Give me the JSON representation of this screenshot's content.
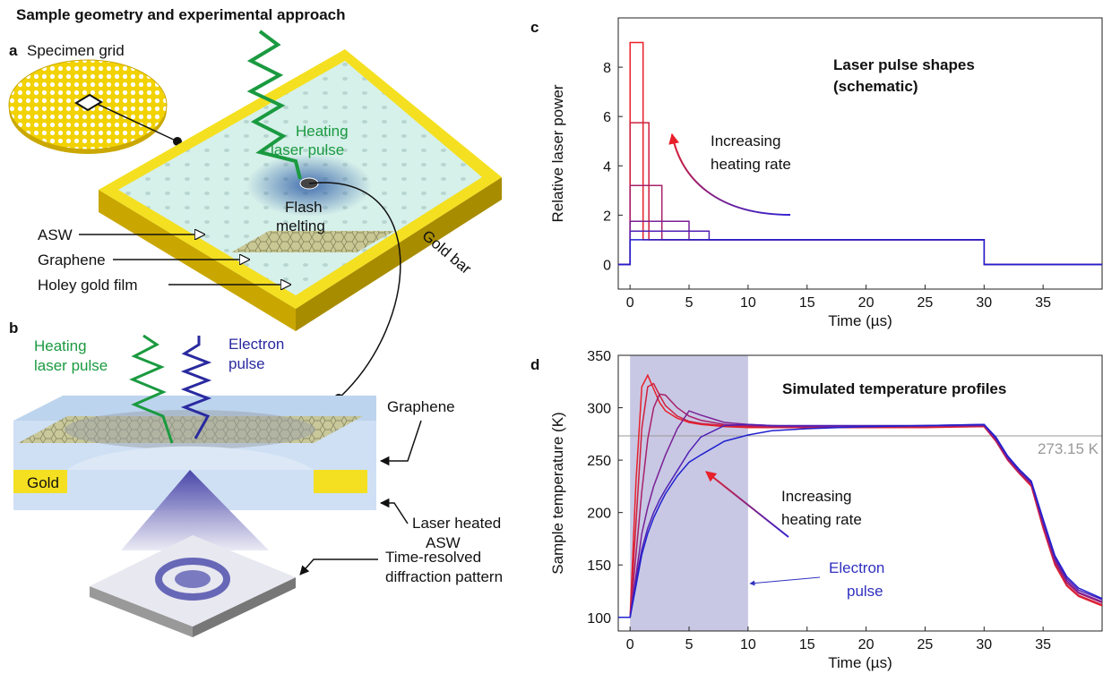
{
  "header": {
    "title": "Sample geometry and experimental approach"
  },
  "panel_a": {
    "label": "a",
    "specimen_grid": "Specimen grid",
    "heating_laser": [
      "Heating",
      "laser pulse"
    ],
    "flash_melting": [
      "Flash",
      "melting"
    ],
    "asw": "ASW",
    "graphene": "Graphene",
    "holey_gold": "Holey gold film",
    "gold_bar": "Gold bar"
  },
  "panel_b": {
    "label": "b",
    "heating_laser": [
      "Heating",
      "laser pulse"
    ],
    "electron_pulse": [
      "Electron",
      "pulse"
    ],
    "graphene": "Graphene",
    "gold": "Gold",
    "laser_heated_asw": [
      "Laser heated",
      "ASW"
    ],
    "diffraction": [
      "Time-resolved",
      "diffraction pattern"
    ]
  },
  "chart_data": [
    {
      "type": "line",
      "panel_label": "c",
      "title": "Laser pulse shapes",
      "subtitle": "(schematic)",
      "x_label": "Time (µs)",
      "y_label": "Relative laser power",
      "annotation": [
        "Increasing",
        "heating rate"
      ],
      "xlim": [
        -1,
        40
      ],
      "xticks": [
        0,
        5,
        10,
        15,
        20,
        25,
        30,
        35
      ],
      "ylim": [
        -1,
        10
      ],
      "yticks": [
        0,
        2,
        4,
        6,
        8
      ],
      "series": [
        {
          "color": "#e8202a",
          "x": [
            -1,
            0,
            0,
            1.1,
            1.1,
            30,
            30,
            40
          ],
          "values": [
            0,
            0,
            9,
            9,
            1,
            1,
            0,
            0
          ]
        },
        {
          "color": "#d0203e",
          "x": [
            -1,
            0,
            0,
            1.6,
            1.6,
            30,
            30,
            40
          ],
          "values": [
            0,
            0,
            5.75,
            5.75,
            1,
            1,
            0,
            0
          ]
        },
        {
          "color": "#a8206a",
          "x": [
            -1,
            0,
            0,
            2.7,
            2.7,
            30,
            30,
            40
          ],
          "values": [
            0,
            0,
            3.2,
            3.2,
            1,
            1,
            0,
            0
          ]
        },
        {
          "color": "#7a2096",
          "x": [
            -1,
            0,
            0,
            5,
            5,
            30,
            30,
            40
          ],
          "values": [
            0,
            0,
            1.75,
            1.75,
            1,
            1,
            0,
            0
          ]
        },
        {
          "color": "#5020b4",
          "x": [
            -1,
            0,
            0,
            6.7,
            6.7,
            30,
            30,
            40
          ],
          "values": [
            0,
            0,
            1.35,
            1.35,
            1,
            1,
            0,
            0
          ]
        },
        {
          "color": "#2020d0",
          "x": [
            -1,
            0,
            0,
            30,
            30,
            40
          ],
          "values": [
            0,
            0,
            1,
            1,
            0,
            0
          ]
        }
      ]
    },
    {
      "type": "line",
      "panel_label": "d",
      "title": "Simulated temperature profiles",
      "x_label": "Time (µs)",
      "y_label": "Sample temperature (K)",
      "annotation": [
        "Increasing",
        "heating rate"
      ],
      "shaded_label": [
        "Electron",
        "pulse"
      ],
      "shaded_region": [
        0,
        10
      ],
      "reference_line": {
        "value": 273.15,
        "label": "273.15 K"
      },
      "xlim": [
        -1,
        40
      ],
      "xticks": [
        0,
        5,
        10,
        15,
        20,
        25,
        30,
        35
      ],
      "ylim": [
        87,
        350
      ],
      "yticks": [
        100,
        150,
        200,
        250,
        300,
        350
      ],
      "x": [
        -1,
        0,
        0.5,
        1,
        1.5,
        2,
        2.5,
        3,
        4,
        5,
        6,
        8,
        10,
        12,
        15,
        20,
        25,
        30,
        31,
        32,
        33,
        34,
        35,
        36,
        37,
        38,
        40
      ],
      "series": [
        {
          "color": "#e8202a",
          "values": [
            100,
            100,
            230,
            320,
            331,
            318,
            305,
            297,
            290,
            286,
            284,
            282,
            281,
            281,
            281,
            281,
            281,
            282,
            268,
            250,
            237,
            225,
            185,
            150,
            130,
            120,
            111
          ]
        },
        {
          "color": "#d0203e",
          "values": [
            100,
            100,
            190,
            280,
            320,
            323,
            312,
            302,
            292,
            287,
            285,
            283,
            282,
            281,
            281,
            281,
            282,
            282,
            268,
            250,
            237,
            226,
            186,
            151,
            131,
            121,
            112
          ]
        },
        {
          "color": "#a8206a",
          "values": [
            100,
            100,
            160,
            220,
            270,
            300,
            313,
            312,
            300,
            292,
            288,
            284,
            283,
            282,
            282,
            282,
            282,
            283,
            269,
            251,
            238,
            227,
            188,
            153,
            133,
            123,
            114
          ]
        },
        {
          "color": "#7a2096",
          "values": [
            100,
            100,
            140,
            180,
            205,
            225,
            240,
            255,
            280,
            297,
            293,
            286,
            284,
            283,
            282,
            282,
            283,
            283,
            270,
            252,
            239,
            228,
            190,
            155,
            135,
            124,
            115
          ]
        },
        {
          "color": "#5020b4",
          "values": [
            100,
            100,
            135,
            165,
            185,
            200,
            212,
            222,
            240,
            258,
            272,
            283,
            284,
            283,
            283,
            283,
            283,
            284,
            271,
            253,
            240,
            229,
            192,
            157,
            137,
            126,
            117
          ]
        },
        {
          "color": "#2020d0",
          "values": [
            100,
            100,
            130,
            160,
            180,
            195,
            207,
            218,
            235,
            248,
            255,
            268,
            274,
            278,
            280,
            282,
            283,
            284,
            272,
            254,
            241,
            230,
            194,
            159,
            139,
            128,
            118
          ]
        }
      ]
    }
  ]
}
